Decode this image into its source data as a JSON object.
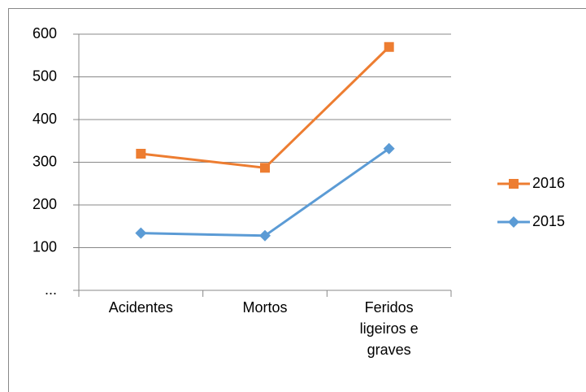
{
  "chart_data": {
    "type": "line",
    "categories": [
      "Acidentes",
      "Mortos",
      "Feridos ligeiros e graves"
    ],
    "series": [
      {
        "name": "2016",
        "color": "#ed7d31",
        "marker": "square",
        "values": [
          320,
          287,
          570
        ]
      },
      {
        "name": "2015",
        "color": "#5b9bd5",
        "marker": "diamond",
        "values": [
          134,
          128,
          332
        ]
      }
    ],
    "ylim": [
      0,
      600
    ],
    "yticks": [
      {
        "value": 0,
        "label": "..."
      },
      100,
      200,
      300,
      400,
      500,
      600
    ],
    "grid": true,
    "legend": "right"
  }
}
